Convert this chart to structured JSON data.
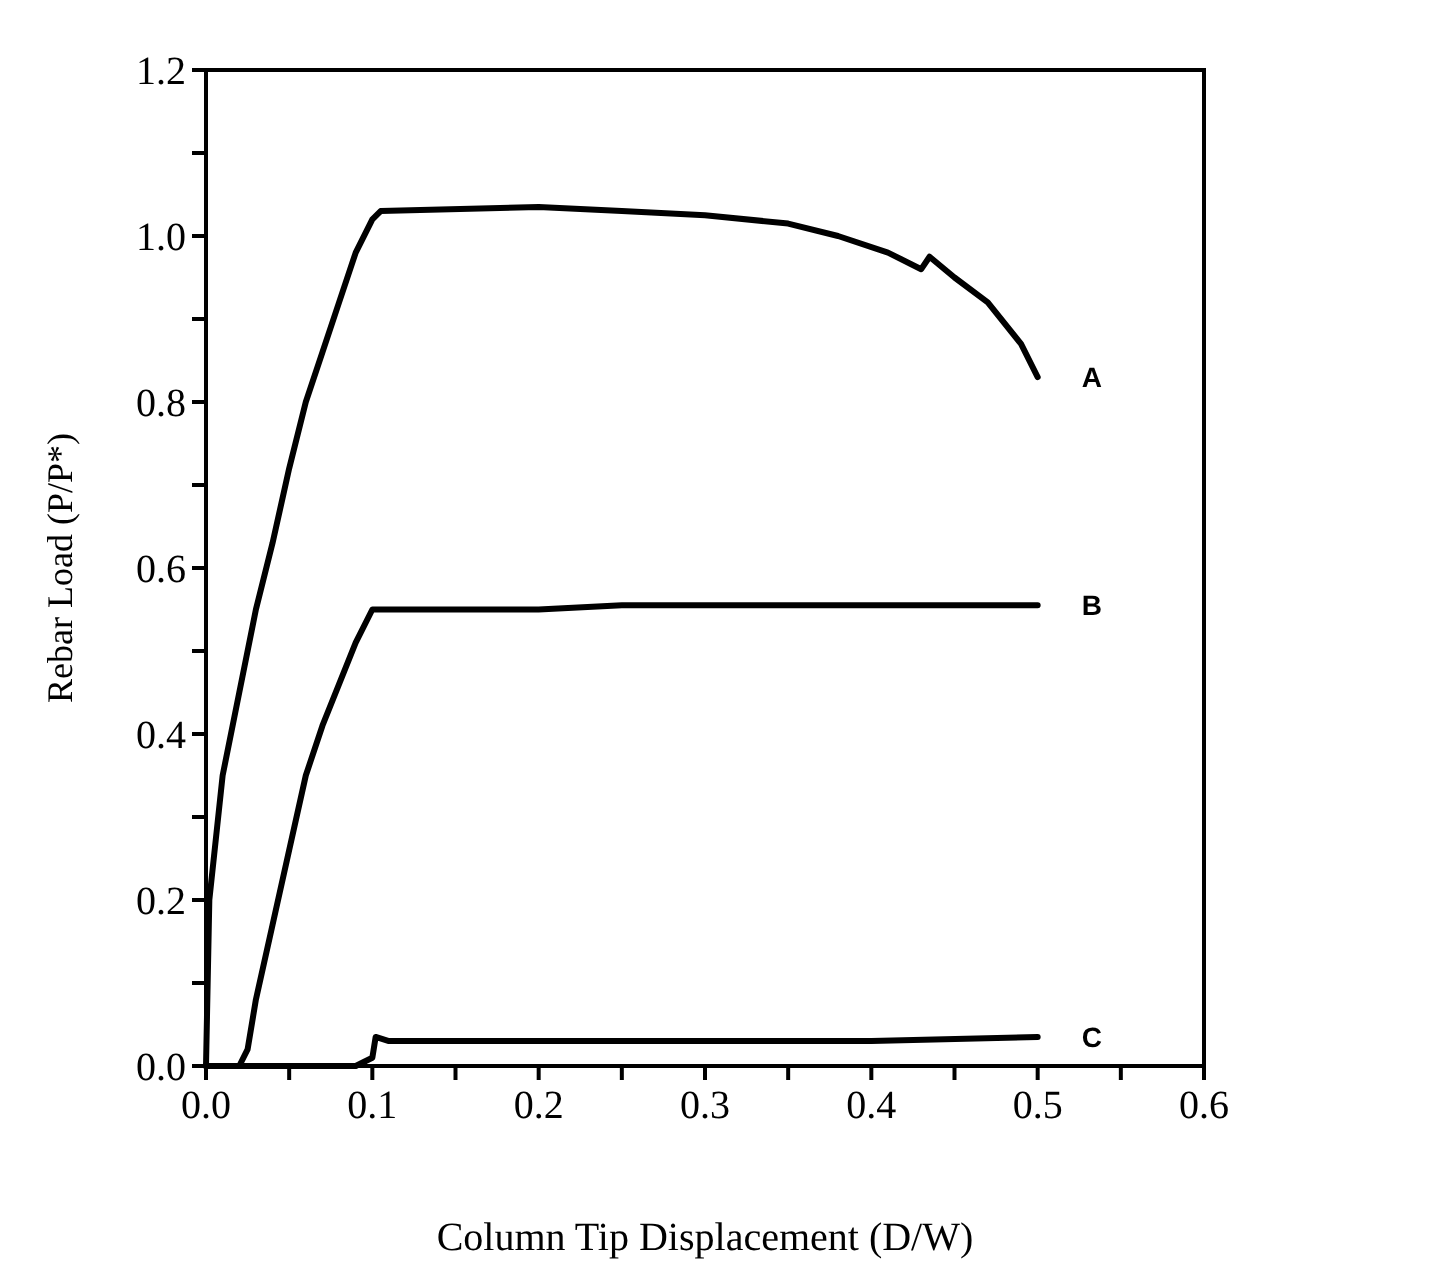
{
  "chart_data": {
    "type": "line",
    "xlabel": "Column Tip Displacement  (D/W)",
    "ylabel": "Rebar Load  (P/P*)",
    "xlim": [
      0,
      0.6
    ],
    "ylim": [
      0,
      1.2
    ],
    "xticks": [
      {
        "value": 0,
        "label": "0.0"
      },
      {
        "value": 0.05,
        "label": null
      },
      {
        "value": 0.1,
        "label": "0.1"
      },
      {
        "value": 0.15,
        "label": null
      },
      {
        "value": 0.2,
        "label": "0.2"
      },
      {
        "value": 0.25,
        "label": null
      },
      {
        "value": 0.3,
        "label": "0.3"
      },
      {
        "value": 0.35,
        "label": null
      },
      {
        "value": 0.4,
        "label": "0.4"
      },
      {
        "value": 0.45,
        "label": null
      },
      {
        "value": 0.5,
        "label": "0.5"
      },
      {
        "value": 0.55,
        "label": null
      },
      {
        "value": 0.6,
        "label": "0.6"
      }
    ],
    "yticks": [
      {
        "value": 0,
        "label": "0.0"
      },
      {
        "value": 0.1,
        "label": null
      },
      {
        "value": 0.2,
        "label": "0.2"
      },
      {
        "value": 0.3,
        "label": null
      },
      {
        "value": 0.4,
        "label": "0.4"
      },
      {
        "value": 0.5,
        "label": null
      },
      {
        "value": 0.6,
        "label": "0.6"
      },
      {
        "value": 0.7,
        "label": null
      },
      {
        "value": 0.8,
        "label": "0.8"
      },
      {
        "value": 0.9,
        "label": null
      },
      {
        "value": 1.0,
        "label": "1.0"
      },
      {
        "value": 1.1,
        "label": null
      },
      {
        "value": 1.2,
        "label": "1.2"
      }
    ],
    "grid": false,
    "legend": false,
    "marker": "none",
    "line_style": "solid",
    "series": [
      {
        "name": "A",
        "color": "#000000",
        "x": [
          0,
          0.002,
          0.01,
          0.02,
          0.03,
          0.04,
          0.05,
          0.06,
          0.07,
          0.08,
          0.09,
          0.1,
          0.105,
          0.2,
          0.25,
          0.3,
          0.35,
          0.38,
          0.41,
          0.43,
          0.435,
          0.45,
          0.47,
          0.49,
          0.5
        ],
        "values": [
          0,
          0.2,
          0.35,
          0.45,
          0.55,
          0.63,
          0.72,
          0.8,
          0.86,
          0.92,
          0.98,
          1.02,
          1.03,
          1.035,
          1.03,
          1.025,
          1.015,
          1.0,
          0.98,
          0.96,
          0.975,
          0.95,
          0.92,
          0.87,
          0.83
        ]
      },
      {
        "name": "B",
        "color": "#000000",
        "x": [
          0,
          0.02,
          0.025,
          0.03,
          0.04,
          0.05,
          0.06,
          0.07,
          0.08,
          0.09,
          0.1,
          0.105,
          0.2,
          0.25,
          0.4,
          0.5
        ],
        "values": [
          0,
          0,
          0.02,
          0.08,
          0.17,
          0.26,
          0.35,
          0.41,
          0.46,
          0.51,
          0.55,
          0.55,
          0.55,
          0.555,
          0.555,
          0.555
        ]
      },
      {
        "name": "C",
        "color": "#000000",
        "x": [
          0,
          0.09,
          0.1,
          0.102,
          0.11,
          0.4,
          0.5
        ],
        "values": [
          0,
          0,
          0.01,
          0.035,
          0.03,
          0.03,
          0.035
        ]
      }
    ]
  }
}
